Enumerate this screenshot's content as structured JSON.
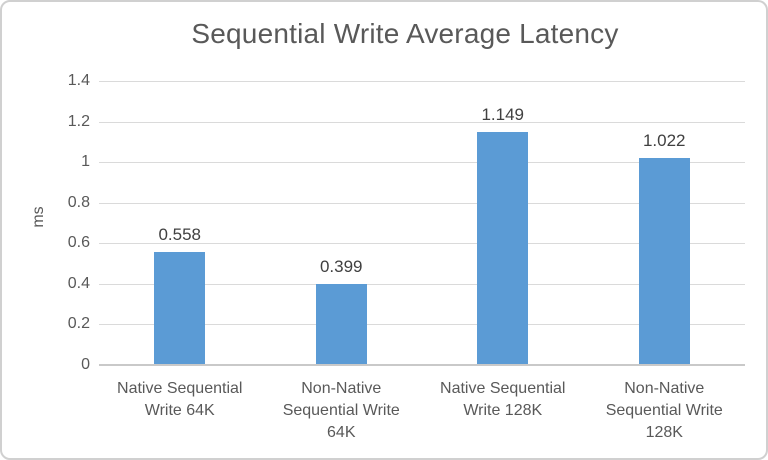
{
  "title": "Sequential Write Average Latency",
  "chart_data": {
    "type": "bar",
    "title": "Sequential Write Average Latency",
    "categories": [
      "Native Sequential Write 64K",
      "Non-Native Sequential Write 64K",
      "Native Sequential Write 128K",
      "Non-Native Sequential Write 128K"
    ],
    "category_lines": [
      [
        "Native Sequential",
        "Write 64K"
      ],
      [
        "Non-Native",
        "Sequential Write",
        "64K"
      ],
      [
        "Native Sequential",
        "Write 128K"
      ],
      [
        "Non-Native",
        "Sequential Write",
        "128K"
      ]
    ],
    "values": [
      0.558,
      0.399,
      1.149,
      1.022
    ],
    "data_labels": [
      "0.558",
      "0.399",
      "1.149",
      "1.022"
    ],
    "xlabel": "",
    "ylabel": "ms",
    "ylim": [
      0,
      1.4
    ],
    "ytick_interval": 0.2,
    "ytick_labels": [
      "0",
      "0.2",
      "0.4",
      "0.6",
      "0.8",
      "1",
      "1.2",
      "1.4"
    ],
    "grid": true,
    "legend": false,
    "bar_color": "#5b9bd5"
  },
  "colors": {
    "bar": "#5b9bd5",
    "gridline": "#dadada",
    "axis_line": "#c9c9c9",
    "title_text": "#595959",
    "axis_text": "#595959",
    "data_label_text": "#404040",
    "frame_border": "#d0d0d0",
    "background": "#ffffff"
  }
}
